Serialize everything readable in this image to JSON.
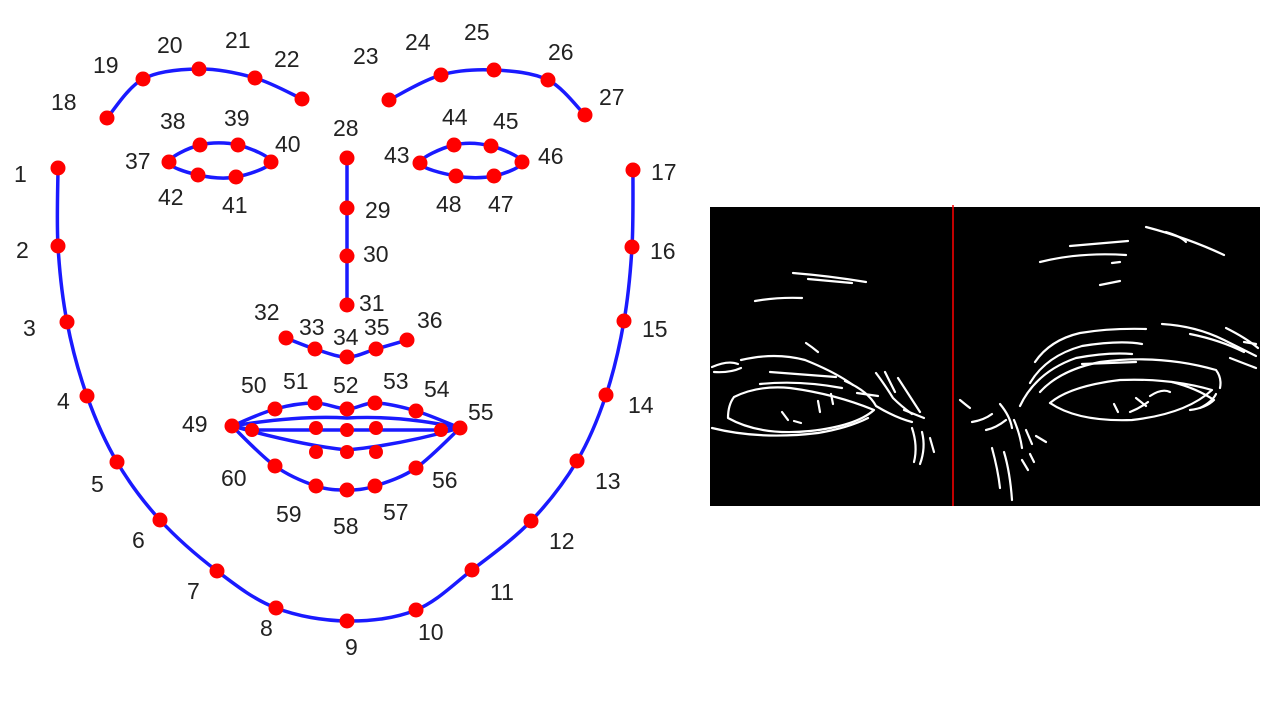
{
  "colors": {
    "background": "#ffffff",
    "contour": "#1a1aff",
    "landmark": "#ff0000",
    "label": "#222222",
    "edge_background": "#000000",
    "edge_lines": "#ffffff",
    "divider": "#ff0000"
  },
  "landmarks": [
    {
      "label": "1"
    },
    {
      "label": "2"
    },
    {
      "label": "3"
    },
    {
      "label": "4"
    },
    {
      "label": "5"
    },
    {
      "label": "6"
    },
    {
      "label": "7"
    },
    {
      "label": "8"
    },
    {
      "label": "9"
    },
    {
      "label": "10"
    },
    {
      "label": "11"
    },
    {
      "label": "12"
    },
    {
      "label": "13"
    },
    {
      "label": "14"
    },
    {
      "label": "15"
    },
    {
      "label": "16"
    },
    {
      "label": "17"
    },
    {
      "label": "18"
    },
    {
      "label": "19"
    },
    {
      "label": "20"
    },
    {
      "label": "21"
    },
    {
      "label": "22"
    },
    {
      "label": "23"
    },
    {
      "label": "24"
    },
    {
      "label": "25"
    },
    {
      "label": "26"
    },
    {
      "label": "27"
    },
    {
      "label": "28"
    },
    {
      "label": "29"
    },
    {
      "label": "30"
    },
    {
      "label": "31"
    },
    {
      "label": "32"
    },
    {
      "label": "33"
    },
    {
      "label": "34"
    },
    {
      "label": "35"
    },
    {
      "label": "36"
    },
    {
      "label": "37"
    },
    {
      "label": "38"
    },
    {
      "label": "39"
    },
    {
      "label": "40"
    },
    {
      "label": "41"
    },
    {
      "label": "42"
    },
    {
      "label": "43"
    },
    {
      "label": "44"
    },
    {
      "label": "45"
    },
    {
      "label": "46"
    },
    {
      "label": "47"
    },
    {
      "label": "48"
    },
    {
      "label": "49"
    },
    {
      "label": "50"
    },
    {
      "label": "51"
    },
    {
      "label": "52"
    },
    {
      "label": "53"
    },
    {
      "label": "54"
    },
    {
      "label": "55"
    },
    {
      "label": "56"
    },
    {
      "label": "57"
    },
    {
      "label": "58"
    },
    {
      "label": "59"
    },
    {
      "label": "60"
    }
  ]
}
